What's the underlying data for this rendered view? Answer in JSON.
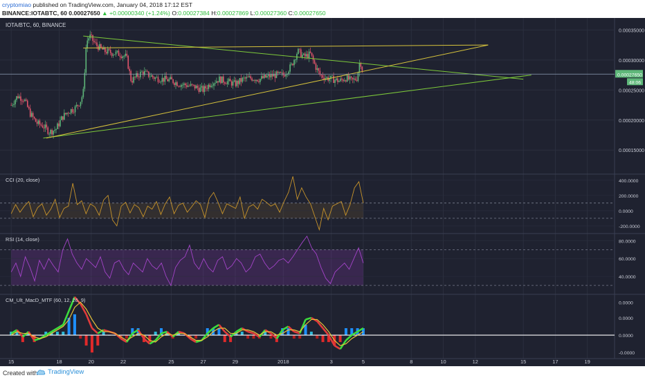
{
  "header": {
    "user": "cryptomiao",
    "published": "published on TradingView.com, January 04, 2018 17:12 EST",
    "symbol": "BINANCE:IOTABTC, 60",
    "change": "+0.00000340 (+1.24%)",
    "ohlc": [
      {
        "label": "O:",
        "value": "0.00027384"
      },
      {
        "label": "H:",
        "value": "0.00027869"
      },
      {
        "label": "L:",
        "value": "0.00027360"
      },
      {
        "label": "C:",
        "value": "0.00027650"
      }
    ],
    "last": "0.00027650"
  },
  "footer": {
    "created": "Created with",
    "brand": "TradingView"
  },
  "colors": {
    "bg": "#1f2230",
    "grid": "#2b2f3e",
    "up": "#5fb87a",
    "down": "#e0556b",
    "cci": "#c8942b",
    "rsi": "#a444c9",
    "trend_green": "#7ecb3a",
    "trend_yellow": "#d8c43c"
  },
  "chart_data": [
    {
      "type": "candlestick",
      "title": "IOTA/BTC, 60, BINANCE",
      "x_ticks": [
        "15",
        "18",
        "20",
        "22",
        "25",
        "27",
        "29",
        "2018",
        "3",
        "5",
        "8",
        "10",
        "12",
        "15",
        "17",
        "19"
      ],
      "x_tick_days": [
        15,
        18,
        20,
        22,
        25,
        27,
        29,
        32,
        35,
        37,
        40,
        42,
        44,
        47,
        49,
        51
      ],
      "y_ticks": [
        "0.00015000",
        "0.00020000",
        "0.00025000",
        "0.00030000",
        "0.00035000"
      ],
      "ylim": [
        0.00011,
        0.00037
      ],
      "last_price": "0.00027650",
      "countdown": "48:06",
      "close_path": [
        [
          15.0,
          0.000225
        ],
        [
          15.4,
          0.00024
        ],
        [
          15.8,
          0.000235
        ],
        [
          16.2,
          0.00021
        ],
        [
          16.6,
          0.000195
        ],
        [
          17.0,
          0.00019
        ],
        [
          17.4,
          0.00018
        ],
        [
          17.8,
          0.000185
        ],
        [
          18.2,
          0.000205
        ],
        [
          18.6,
          0.000215
        ],
        [
          19.0,
          0.00022
        ],
        [
          19.3,
          0.00023
        ],
        [
          19.5,
          0.000245
        ],
        [
          19.7,
          0.00033
        ],
        [
          19.9,
          0.00034
        ],
        [
          20.3,
          0.000325
        ],
        [
          20.8,
          0.000315
        ],
        [
          21.3,
          0.000312
        ],
        [
          21.8,
          0.00031
        ],
        [
          22.2,
          0.000305
        ],
        [
          22.5,
          0.000265
        ],
        [
          22.8,
          0.000272
        ],
        [
          23.2,
          0.00028
        ],
        [
          23.6,
          0.000275
        ],
        [
          24.0,
          0.00027
        ],
        [
          24.5,
          0.000268
        ],
        [
          25.0,
          0.000266
        ],
        [
          25.5,
          0.00026
        ],
        [
          26.0,
          0.000258
        ],
        [
          26.5,
          0.000255
        ],
        [
          27.0,
          0.00025
        ],
        [
          27.5,
          0.000262
        ],
        [
          28.0,
          0.000268
        ],
        [
          28.5,
          0.000264
        ],
        [
          29.0,
          0.00026
        ],
        [
          29.5,
          0.000268
        ],
        [
          30.0,
          0.00027
        ],
        [
          30.5,
          0.000268
        ],
        [
          31.0,
          0.000272
        ],
        [
          31.5,
          0.000275
        ],
        [
          32.0,
          0.000275
        ],
        [
          32.5,
          0.00029
        ],
        [
          32.9,
          0.000315
        ],
        [
          33.3,
          0.000305
        ],
        [
          33.7,
          0.00031
        ],
        [
          34.0,
          0.00029
        ],
        [
          34.3,
          0.000275
        ],
        [
          34.7,
          0.00027
        ],
        [
          35.1,
          0.000268
        ],
        [
          35.5,
          0.000265
        ],
        [
          35.9,
          0.00027
        ],
        [
          36.3,
          0.000265
        ],
        [
          36.6,
          0.00027
        ],
        [
          36.8,
          0.0003
        ],
        [
          37.0,
          0.0002765
        ]
      ],
      "trendlines": [
        {
          "color": "trend_green",
          "points": [
            [
              17.0,
              0.00017
            ],
            [
              47.5,
              0.000275
            ]
          ]
        },
        {
          "color": "trend_green",
          "points": [
            [
              19.5,
              0.00034
            ],
            [
              47.0,
              0.000268
            ]
          ]
        },
        {
          "color": "trend_yellow",
          "points": [
            [
              19.5,
              0.00032
            ],
            [
              44.8,
              0.000325
            ]
          ]
        },
        {
          "color": "trend_yellow",
          "points": [
            [
              17.2,
              0.00017
            ],
            [
              44.8,
              0.000325
            ]
          ]
        }
      ]
    },
    {
      "type": "line",
      "title": "CCI (20, close)",
      "y_ticks": [
        "-200.0000",
        "0.0000",
        "200.0000",
        "400.0000"
      ],
      "ylim": [
        -300,
        480
      ],
      "band": [
        -100,
        100
      ],
      "values": [
        -40,
        80,
        -20,
        60,
        120,
        -80,
        40,
        90,
        -60,
        20,
        150,
        -90,
        30,
        60,
        360,
        80,
        130,
        -40,
        90,
        50,
        -60,
        140,
        200,
        -120,
        -200,
        60,
        110,
        -30,
        80,
        40,
        -80,
        60,
        20,
        120,
        -50,
        90,
        180,
        -40,
        70,
        100,
        -20,
        50,
        130,
        80,
        -90,
        160,
        240,
        110,
        -40,
        90,
        60,
        30,
        180,
        -100,
        50,
        80,
        20,
        150,
        110,
        60,
        90,
        -20,
        120,
        240,
        450,
        150,
        300,
        180,
        90,
        -80,
        -250,
        30,
        -120,
        60,
        90,
        120,
        -60,
        80,
        300,
        380,
        100
      ]
    },
    {
      "type": "line",
      "title": "RSI (14, close)",
      "y_ticks": [
        "40.0000",
        "60.0000",
        "80.0000"
      ],
      "ylim": [
        20,
        88
      ],
      "band": [
        30,
        70
      ],
      "values": [
        45,
        55,
        40,
        62,
        50,
        35,
        58,
        48,
        60,
        52,
        45,
        70,
        82,
        65,
        55,
        48,
        60,
        55,
        50,
        62,
        45,
        38,
        55,
        58,
        48,
        42,
        55,
        50,
        45,
        60,
        52,
        48,
        55,
        40,
        30,
        50,
        58,
        62,
        75,
        55,
        48,
        60,
        50,
        45,
        58,
        62,
        48,
        52,
        60,
        55,
        45,
        50,
        62,
        65,
        55,
        48,
        52,
        58,
        60,
        55,
        62,
        70,
        78,
        85,
        72,
        65,
        50,
        38,
        32,
        45,
        50,
        55,
        48,
        60,
        72,
        55
      ]
    },
    {
      "type": "line",
      "title": "CM_Ult_MacD_MTF (60, 12, 26, 9)",
      "y_ticks": [
        "-0.0000",
        "0.0000",
        "0.0000",
        "0.0000",
        "0.0000"
      ],
      "ylim": [
        -1.35,
        2.35
      ],
      "macd": [
        0.1,
        0.3,
        -0.1,
        0.2,
        -0.3,
        -0.2,
        0.0,
        0.2,
        0.4,
        0.6,
        1.4,
        2.2,
        1.8,
        1.2,
        0.4,
        0.1,
        0.3,
        0.2,
        0.1,
        -0.2,
        -0.4,
        0.1,
        0.3,
        -0.2,
        -0.5,
        -0.3,
        0.1,
        0.2,
        -0.1,
        0.2,
        0.1,
        -0.2,
        -0.4,
        -0.3,
        0.1,
        0.4,
        0.6,
        0.2,
        -0.1,
        0.2,
        0.4,
        0.2,
        0.1,
        -0.1,
        0.3,
        0.1,
        -0.2,
        0.3,
        0.5,
        0.2,
        0.1,
        0.9,
        1.0,
        0.8,
        0.4,
        0.0,
        -0.6,
        -0.8,
        -0.3,
        0.0,
        0.2,
        0.4
      ],
      "signal": [
        0.0,
        0.2,
        0.1,
        0.1,
        -0.1,
        -0.2,
        -0.1,
        0.1,
        0.3,
        0.5,
        0.9,
        1.6,
        1.9,
        1.5,
        0.9,
        0.4,
        0.2,
        0.2,
        0.1,
        -0.1,
        -0.3,
        -0.1,
        0.1,
        0.0,
        -0.3,
        -0.4,
        -0.1,
        0.1,
        0.0,
        0.1,
        0.1,
        -0.1,
        -0.3,
        -0.3,
        -0.1,
        0.2,
        0.4,
        0.4,
        0.1,
        0.1,
        0.3,
        0.3,
        0.2,
        0.0,
        0.2,
        0.2,
        0.0,
        0.1,
        0.3,
        0.3,
        0.2,
        0.6,
        0.9,
        0.9,
        0.6,
        0.2,
        -0.3,
        -0.6,
        -0.5,
        -0.2,
        0.0,
        0.2
      ]
    }
  ]
}
